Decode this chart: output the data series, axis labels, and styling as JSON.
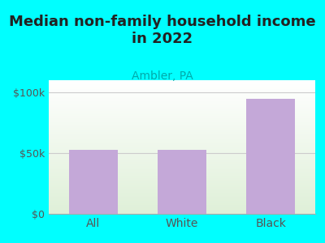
{
  "title": "Median non-family household income\nin 2022",
  "subtitle": "Ambler, PA",
  "categories": [
    "All",
    "White",
    "Black"
  ],
  "values": [
    53000,
    53000,
    95000
  ],
  "bar_color": "#C4A8D8",
  "title_fontsize": 13,
  "subtitle_fontsize": 10,
  "subtitle_color": "#00AAAA",
  "title_color": "#222222",
  "background_color": "#00FFFF",
  "plot_bg_top": "#dff0d8",
  "plot_bg_bottom": "#ffffff",
  "yticks": [
    0,
    50000,
    100000
  ],
  "ytick_labels": [
    "$0",
    "$50k",
    "$100k"
  ],
  "ylim": [
    0,
    110000
  ],
  "xlim": [
    -0.5,
    2.5
  ],
  "tick_color": "#555555",
  "tick_fontsize": 9,
  "xlabel_fontsize": 10,
  "bar_width": 0.55
}
